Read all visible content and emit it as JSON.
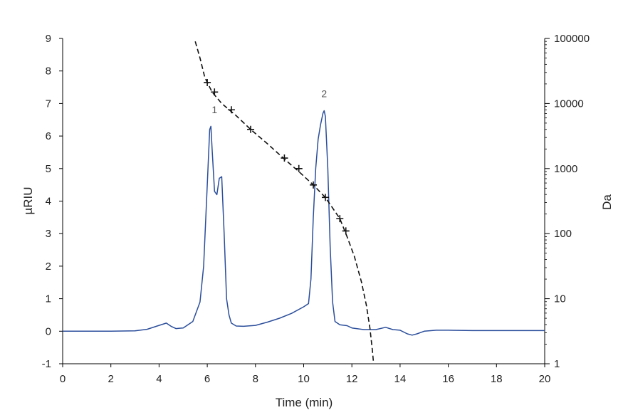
{
  "chart_data": {
    "type": "line",
    "xlabel": "Time (min)",
    "ylabel": "µRIU",
    "y2label": "Da",
    "xlim": [
      0,
      20
    ],
    "ylim": [
      -1,
      9
    ],
    "y2lim": [
      1,
      100000
    ],
    "y2scale": "log",
    "xticks": [
      0,
      2,
      4,
      6,
      8,
      10,
      12,
      14,
      16,
      18,
      20
    ],
    "yticks": [
      -1,
      0,
      1,
      2,
      3,
      4,
      5,
      6,
      7,
      8,
      9
    ],
    "y2ticks": [
      1,
      10,
      100,
      1000,
      10000,
      100000
    ],
    "grid": false,
    "annotations": [
      {
        "text": "1",
        "x": 6.3,
        "y": 6.7
      },
      {
        "text": "2",
        "x": 10.85,
        "y": 7.2
      }
    ],
    "series": [
      {
        "axis": "left",
        "style": "solid",
        "color": "#2b4e9b",
        "x": [
          0,
          2,
          3,
          3.5,
          4.0,
          4.3,
          4.5,
          4.7,
          5.0,
          5.4,
          5.7,
          5.85,
          6.0,
          6.1,
          6.15,
          6.2,
          6.3,
          6.4,
          6.5,
          6.6,
          6.7,
          6.8,
          6.9,
          7.0,
          7.2,
          7.5,
          8.0,
          8.5,
          9.0,
          9.5,
          10.0,
          10.2,
          10.3,
          10.4,
          10.5,
          10.6,
          10.7,
          10.8,
          10.85,
          10.9,
          11.0,
          11.1,
          11.2,
          11.3,
          11.5,
          11.8,
          12.0,
          12.5,
          13.0,
          13.4,
          13.7,
          14.0,
          14.3,
          14.5,
          14.7,
          15.0,
          15.5,
          16,
          17,
          18,
          19,
          20
        ],
        "y": [
          0,
          0,
          0.01,
          0.06,
          0.18,
          0.25,
          0.15,
          0.08,
          0.1,
          0.3,
          0.9,
          2.0,
          4.5,
          6.2,
          6.3,
          5.6,
          4.3,
          4.2,
          4.7,
          4.75,
          3.0,
          1.0,
          0.5,
          0.25,
          0.16,
          0.15,
          0.18,
          0.28,
          0.4,
          0.55,
          0.75,
          0.85,
          1.6,
          3.5,
          5.0,
          5.9,
          6.35,
          6.7,
          6.78,
          6.6,
          5.0,
          2.6,
          0.9,
          0.3,
          0.2,
          0.17,
          0.1,
          0.05,
          0.05,
          0.12,
          0.05,
          0.03,
          -0.08,
          -0.12,
          -0.08,
          0,
          0.03,
          0.03,
          0.02,
          0.02,
          0.02,
          0.02
        ]
      },
      {
        "axis": "right",
        "style": "dashed",
        "color": "#111111",
        "x": [
          5.5,
          5.7,
          5.9,
          6.2,
          6.6,
          7.2,
          7.8,
          8.5,
          9.2,
          9.8,
          10.4,
          10.9,
          11.5,
          11.8,
          12.1,
          12.4,
          12.6,
          12.75,
          12.85,
          12.9
        ],
        "y": [
          90000,
          50000,
          25000,
          15000,
          10000,
          6500,
          4000,
          2400,
          1400,
          900,
          560,
          360,
          170,
          90,
          45,
          18,
          8,
          3.5,
          1.6,
          1
        ]
      },
      {
        "axis": "right",
        "style": "markers",
        "marker": "cross",
        "color": "#111111",
        "x": [
          6.0,
          6.3,
          7.0,
          7.8,
          9.2,
          9.8,
          10.4,
          10.9,
          11.5,
          11.75
        ],
        "y": [
          21000,
          15000,
          8000,
          4000,
          1450,
          1000,
          560,
          360,
          170,
          110
        ]
      }
    ]
  }
}
